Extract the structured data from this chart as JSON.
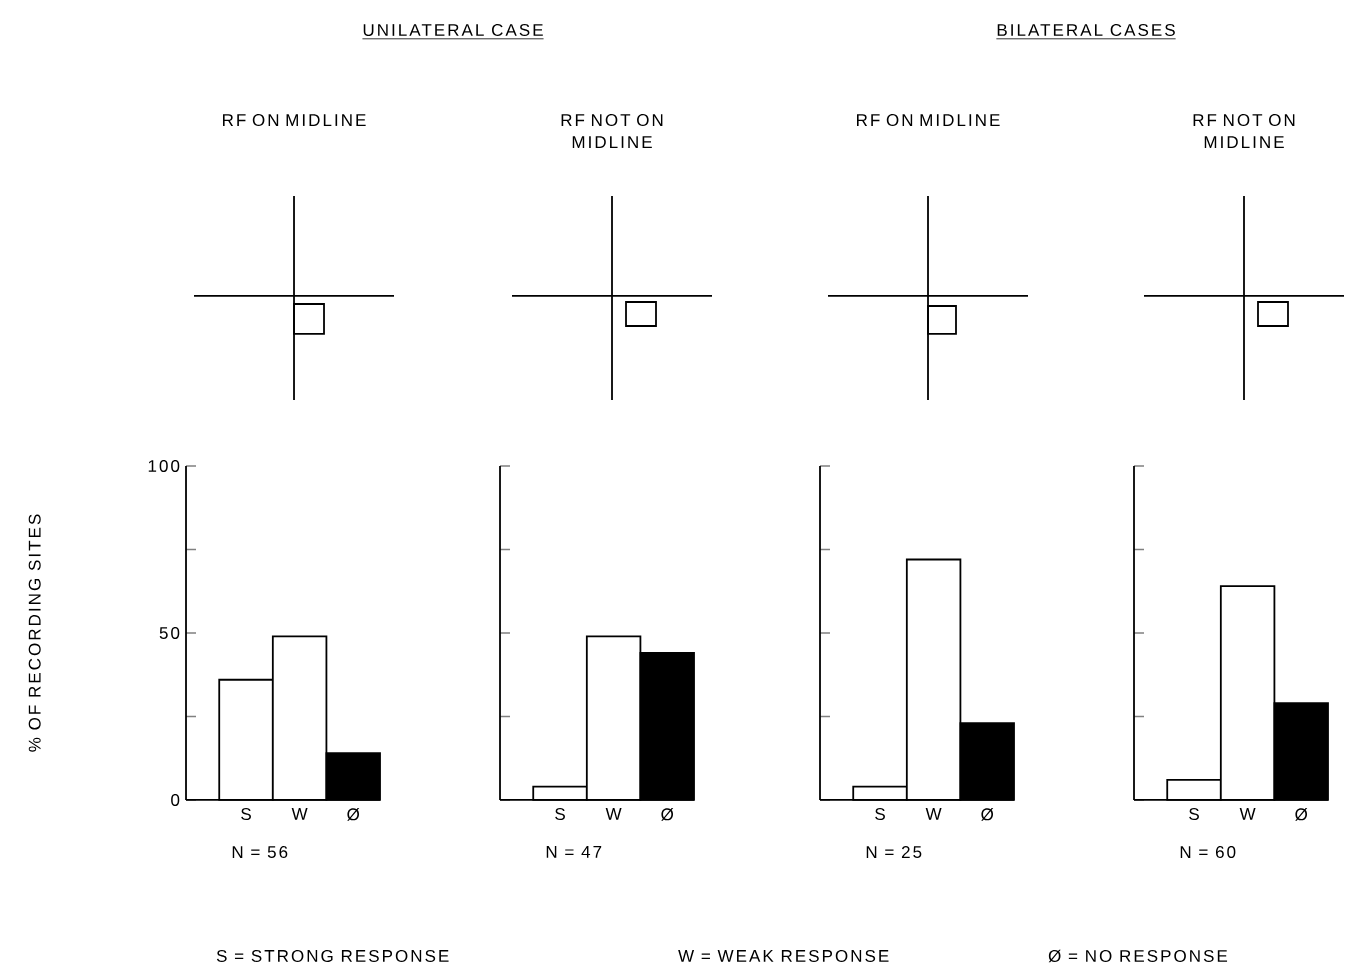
{
  "chart_data": [
    {
      "type": "bar",
      "title": "UNILATERAL CASE",
      "subtitle": "RF ON MIDLINE",
      "categories": [
        "S",
        "W",
        "Ø"
      ],
      "values": [
        36,
        49,
        14
      ],
      "colors": [
        "#ffffff",
        "#ffffff",
        "#000000"
      ],
      "ylim": [
        0,
        100
      ],
      "yticks": [
        0,
        {
          "value": 25,
          "label": null
        },
        50,
        {
          "value": 75,
          "label": null
        },
        100
      ],
      "xlabel": "N = 56",
      "ylabel": "% OF RECORDING SITES",
      "annotations": [
        "S = STRONG RESPONSE",
        "W = WEAK RESPONSE",
        "Ø = NO RESPONSE"
      ]
    },
    {
      "type": "bar",
      "subtitle": "RF NOT ON MIDLINE",
      "categories": [
        "S",
        "W",
        "Ø"
      ],
      "values": [
        4,
        49,
        44
      ],
      "colors": [
        "#ffffff",
        "#ffffff",
        "#000000"
      ],
      "ylim": [
        0,
        100
      ],
      "yticks": [
        0,
        25,
        50,
        75,
        100
      ],
      "tick_labels": "x",
      "xlabel": "N = 47"
    },
    {
      "type": "bar",
      "title": "BILATERAL CASES",
      "subtitle": "RF ON MIDLINE",
      "categories": [
        "S",
        "W",
        "Ø"
      ],
      "values": [
        4,
        72,
        23
      ],
      "colors": [
        "#ffffff",
        "#ffffff",
        "#000000"
      ],
      "ylim": [
        0,
        100
      ],
      "yticks": [
        0,
        25,
        50,
        75,
        100
      ],
      "tick_labels": "x",
      "xlabel": "N = 25"
    },
    {
      "type": "bar",
      "subtitle": "RF NOT ON MIDLINE",
      "categories": [
        "S",
        "W",
        "Ø"
      ],
      "values": [
        6,
        64,
        29
      ],
      "colors": [
        "#ffffff",
        "#ffffff",
        "#000000"
      ],
      "ylim": [
        0,
        100
      ],
      "yticks": [
        0,
        25,
        50,
        75,
        100
      ],
      "tick_labels": "x",
      "xlabel": "N = 60"
    }
  ]
}
